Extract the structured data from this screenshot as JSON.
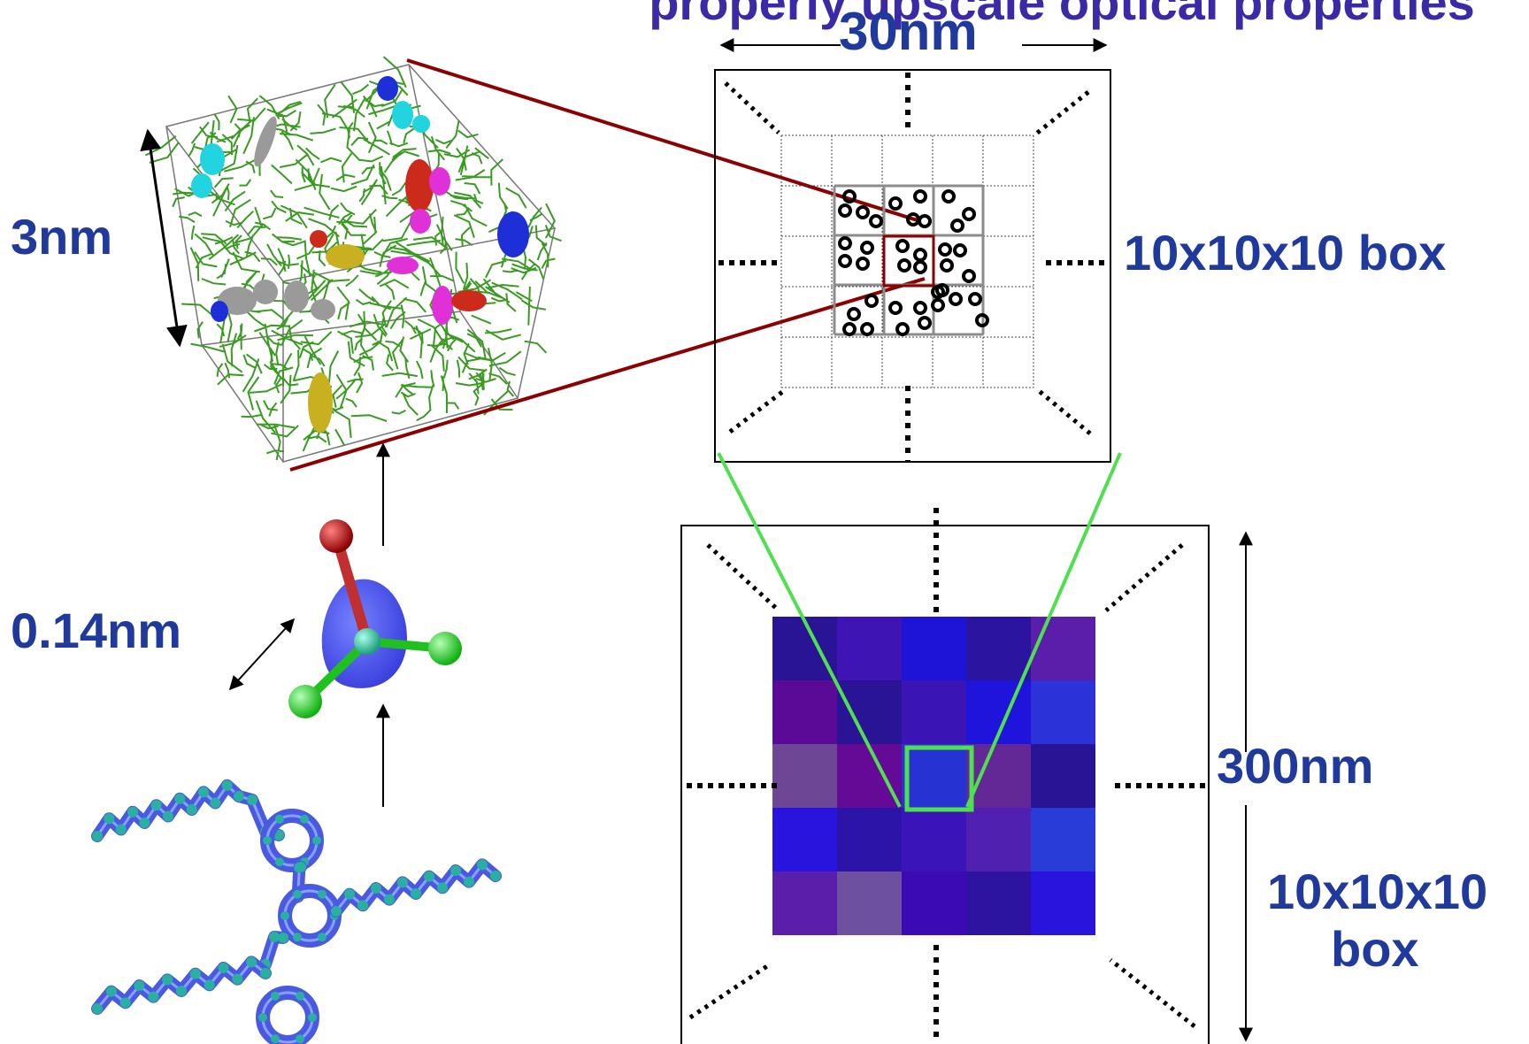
{
  "title_partial": "properly upscale optical properties",
  "labels": {
    "top_scale": "30nm",
    "left_scale": "3nm",
    "mid_box_label": "10x10x10 box",
    "bond_scale": "0.14nm",
    "bottom_scale": "300nm",
    "bottom_box_label_line1": "10x10x10",
    "bottom_box_label_line2": "box"
  },
  "colors": {
    "label_blue": "#1f3a9c",
    "title_purple": "#3b2aa8",
    "zoom_red": "#8b0000",
    "zoom_green": "#4fe04f",
    "grid_gray": "#8c8c8c"
  },
  "icons": {
    "md_cube": "molecular-dynamics-box-icon",
    "molecule": "tetrahedral-molecule-icon",
    "polymer": "polymer-chain-icon"
  },
  "heatmap": {
    "rows": [
      [
        "#2a1496",
        "#3f14b4",
        "#1e14d8",
        "#2a14a0",
        "#5a1eaa"
      ],
      [
        "#5a0a96",
        "#2a1496",
        "#3a14b4",
        "#1e14dc",
        "#2a32d8"
      ],
      [
        "#6e4696",
        "#640a96",
        "#2632d2",
        "#642896",
        "#2a1496"
      ],
      [
        "#2814dc",
        "#2d14a8",
        "#3a14b8",
        "#5020b0",
        "#2a3cd8"
      ],
      [
        "#5a1eaa",
        "#6e50a0",
        "#3c0ab4",
        "#2d14a0",
        "#2814dc"
      ]
    ]
  }
}
